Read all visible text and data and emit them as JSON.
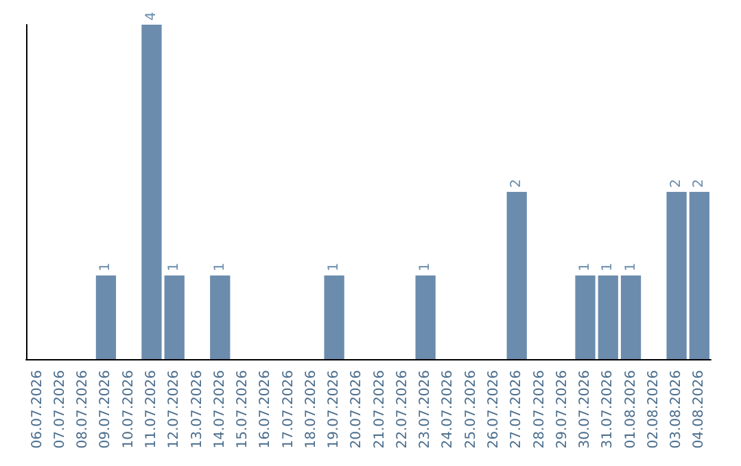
{
  "chart_data": {
    "type": "bar",
    "categories": [
      "06.07.2026",
      "07.07.2026",
      "08.07.2026",
      "09.07.2026",
      "10.07.2026",
      "11.07.2026",
      "12.07.2026",
      "13.07.2026",
      "14.07.2026",
      "15.07.2026",
      "16.07.2026",
      "17.07.2026",
      "18.07.2026",
      "19.07.2026",
      "20.07.2026",
      "21.07.2026",
      "22.07.2026",
      "23.07.2026",
      "24.07.2026",
      "25.07.2026",
      "26.07.2026",
      "27.07.2026",
      "28.07.2026",
      "29.07.2026",
      "30.07.2026",
      "31.07.2026",
      "01.08.2026",
      "02.08.2026",
      "03.08.2026",
      "04.08.2026"
    ],
    "values": [
      0,
      0,
      0,
      1,
      0,
      4,
      1,
      0,
      1,
      0,
      0,
      0,
      0,
      1,
      0,
      0,
      0,
      1,
      0,
      0,
      0,
      2,
      0,
      0,
      1,
      1,
      1,
      0,
      2,
      2
    ],
    "value_labels": [
      null,
      null,
      null,
      "1",
      null,
      "4",
      "1",
      null,
      "1",
      null,
      null,
      null,
      null,
      "1",
      null,
      null,
      null,
      "1",
      null,
      null,
      null,
      "2",
      null,
      null,
      "1",
      "1",
      "1",
      null,
      "2",
      "2"
    ],
    "color": "#6b8cad",
    "tick_labels": "x"
  }
}
